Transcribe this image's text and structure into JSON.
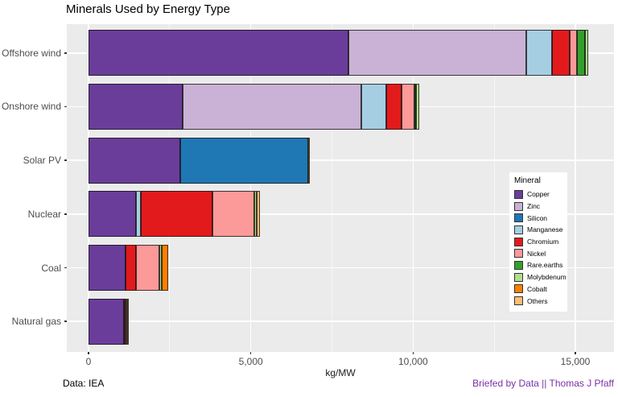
{
  "title": "Minerals Used by Energy Type",
  "footer": {
    "left": "Data: IEA",
    "right": "Briefed by Data || Thomas J Pfaff",
    "right_color": "#7a2fa8"
  },
  "colors": {
    "panel_bg": "#ebebeb",
    "gridline": "#ffffff",
    "axis_text": "#4d4d4d",
    "bar_outline": "#141414"
  },
  "chart_data": {
    "type": "bar",
    "orientation": "horizontal",
    "stacked": true,
    "title": "Minerals Used by Energy Type",
    "xlabel": "kg/MW",
    "legend_title": "Mineral",
    "legend_position": "inside-right",
    "grid": true,
    "xlim": [
      -770,
      16170
    ],
    "categories": [
      "Offshore wind",
      "Onshore wind",
      "Solar PV",
      "Nuclear",
      "Coal",
      "Natural gas"
    ],
    "x_ticks": [
      {
        "value": 0,
        "label": "0"
      },
      {
        "value": 5000,
        "label": "5,000"
      },
      {
        "value": 10000,
        "label": "10,000"
      },
      {
        "value": 15000,
        "label": "15,000"
      }
    ],
    "x_minor_ticks": [
      2500,
      7500,
      12500
    ],
    "series": [
      {
        "name": "Copper",
        "color": "#6a3d9a",
        "values": [
          8000,
          2900,
          2822,
          1473,
          1150,
          1100
        ]
      },
      {
        "name": "Zinc",
        "color": "#cab2d6",
        "values": [
          5500,
          5500,
          0,
          0,
          0,
          0
        ]
      },
      {
        "name": "Silicon",
        "color": "#1f78b4",
        "values": [
          0,
          0,
          3948,
          0,
          0,
          0
        ]
      },
      {
        "name": "Manganese",
        "color": "#a6cee3",
        "values": [
          790,
          780,
          0,
          148,
          0,
          0
        ]
      },
      {
        "name": "Chromium",
        "color": "#e31a1c",
        "values": [
          525,
          470,
          0,
          2190,
          308,
          48
        ]
      },
      {
        "name": "Nickel",
        "color": "#fb9a99",
        "values": [
          240,
          404,
          0,
          1297,
          721,
          16
        ]
      },
      {
        "name": "Rare.earths",
        "color": "#33a02c",
        "values": [
          239,
          14,
          0,
          0,
          0,
          0
        ]
      },
      {
        "name": "Molybdenum",
        "color": "#b2df8a",
        "values": [
          109,
          99,
          0,
          70,
          66,
          18
        ]
      },
      {
        "name": "Cobalt",
        "color": "#ff7f00",
        "values": [
          0,
          0,
          0,
          0,
          201,
          0
        ]
      },
      {
        "name": "Others",
        "color": "#fdbf6f",
        "values": [
          0,
          0,
          30,
          95,
          0,
          0
        ]
      }
    ],
    "totals": [
      15403,
      10167,
      6800,
      5273,
      2446,
      1182
    ]
  }
}
